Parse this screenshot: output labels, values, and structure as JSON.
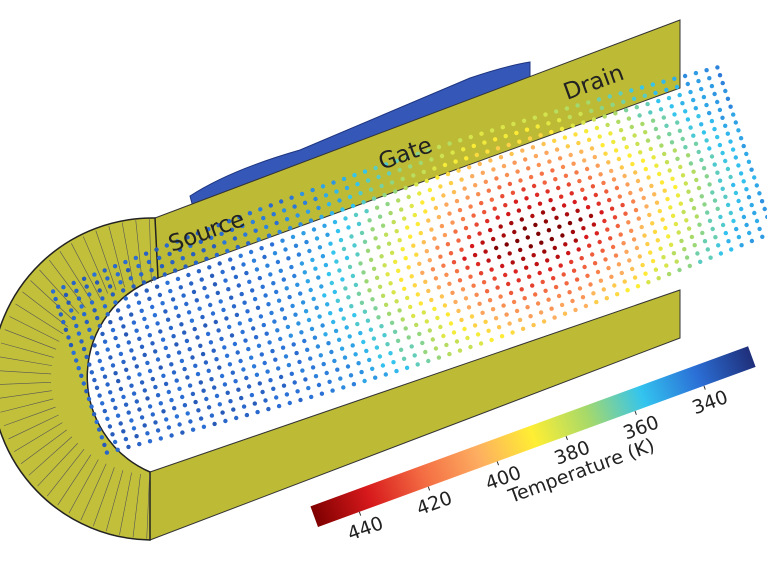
{
  "device": {
    "labels": {
      "source": "Source",
      "gate": "Gate",
      "drain": "Drain"
    }
  },
  "colorbar": {
    "title": "Temperature (K)",
    "lim": [
      452,
      325
    ],
    "ticks": [
      440,
      420,
      400,
      380,
      360,
      340
    ],
    "colormap": [
      "#7f0000",
      "#d7191c",
      "#f46d43",
      "#fdae61",
      "#ffee33",
      "#a6d96a",
      "#33c4ef",
      "#2b6fd6",
      "#1f2f7a"
    ]
  }
}
